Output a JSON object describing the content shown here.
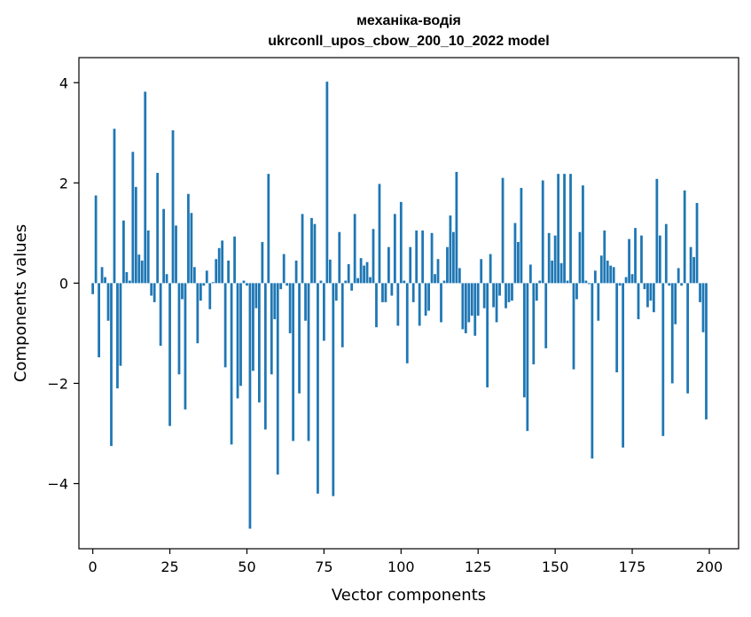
{
  "chart_data": {
    "type": "bar",
    "title": "механіка-водія",
    "subtitle": "ukrconll_upos_cbow_200_10_2022 model",
    "xlabel": "Vector components",
    "ylabel": "Components values",
    "xlim": [
      -4.5,
      209.5
    ],
    "ylim": [
      -5.3,
      4.5
    ],
    "xticks": [
      0,
      25,
      50,
      75,
      100,
      125,
      150,
      175,
      200
    ],
    "xtick_labels": [
      "0",
      "25",
      "50",
      "75",
      "100",
      "125",
      "150",
      "175",
      "200"
    ],
    "yticks": [
      -4,
      -2,
      0,
      2,
      4
    ],
    "ytick_labels": [
      "−4",
      "−2",
      "0",
      "2",
      "4"
    ],
    "grid": false,
    "bar_color": "#1f77b4",
    "x": [
      0,
      1,
      2,
      3,
      4,
      5,
      6,
      7,
      8,
      9,
      10,
      11,
      12,
      13,
      14,
      15,
      16,
      17,
      18,
      19,
      20,
      21,
      22,
      23,
      24,
      25,
      26,
      27,
      28,
      29,
      30,
      31,
      32,
      33,
      34,
      35,
      36,
      37,
      38,
      39,
      40,
      41,
      42,
      43,
      44,
      45,
      46,
      47,
      48,
      49,
      50,
      51,
      52,
      53,
      54,
      55,
      56,
      57,
      58,
      59,
      60,
      61,
      62,
      63,
      64,
      65,
      66,
      67,
      68,
      69,
      70,
      71,
      72,
      73,
      74,
      75,
      76,
      77,
      78,
      79,
      80,
      81,
      82,
      83,
      84,
      85,
      86,
      87,
      88,
      89,
      90,
      91,
      92,
      93,
      94,
      95,
      96,
      97,
      98,
      99,
      100,
      101,
      102,
      103,
      104,
      105,
      106,
      107,
      108,
      109,
      110,
      111,
      112,
      113,
      114,
      115,
      116,
      117,
      118,
      119,
      120,
      121,
      122,
      123,
      124,
      125,
      126,
      127,
      128,
      129,
      130,
      131,
      132,
      133,
      134,
      135,
      136,
      137,
      138,
      139,
      140,
      141,
      142,
      143,
      144,
      145,
      146,
      147,
      148,
      149,
      150,
      151,
      152,
      153,
      154,
      155,
      156,
      157,
      158,
      159,
      160,
      161,
      162,
      163,
      164,
      165,
      166,
      167,
      168,
      169,
      170,
      171,
      172,
      173,
      174,
      175,
      176,
      177,
      178,
      179,
      180,
      181,
      182,
      183,
      184,
      185,
      186,
      187,
      188,
      189,
      190,
      191,
      192,
      193,
      194,
      195,
      196,
      197,
      198,
      199
    ],
    "values": [
      -0.22,
      1.75,
      -1.48,
      0.32,
      0.12,
      -0.75,
      -3.25,
      3.08,
      -2.1,
      -1.65,
      1.25,
      0.22,
      0.05,
      2.62,
      1.92,
      0.57,
      0.45,
      3.82,
      1.05,
      -0.25,
      -0.38,
      2.2,
      -1.25,
      1.48,
      0.18,
      -2.85,
      3.05,
      1.15,
      -1.82,
      -0.32,
      -2.52,
      1.78,
      1.4,
      0.32,
      -1.2,
      -0.35,
      -0.05,
      0.25,
      -0.52,
      0.02,
      0.48,
      0.7,
      0.85,
      -1.68,
      0.45,
      -3.22,
      0.93,
      -2.3,
      -2.05,
      0.05,
      -0.05,
      -4.9,
      -1.75,
      -0.5,
      -2.38,
      0.82,
      -2.92,
      2.18,
      -1.82,
      -0.72,
      -3.82,
      -0.12,
      0.58,
      -0.05,
      -1.0,
      -3.15,
      0.45,
      -2.2,
      1.38,
      -0.75,
      -3.15,
      1.3,
      1.18,
      -4.2,
      0.05,
      -1.15,
      4.02,
      0.47,
      -4.25,
      -0.35,
      1.02,
      -1.28,
      0.05,
      0.38,
      -0.15,
      1.38,
      0.1,
      0.5,
      0.35,
      0.42,
      0.12,
      1.08,
      -0.88,
      1.98,
      -0.38,
      -0.38,
      0.72,
      -0.25,
      1.38,
      -0.85,
      1.62,
      0.05,
      -1.6,
      0.72,
      -0.38,
      1.05,
      -0.85,
      1.05,
      -0.65,
      -0.55,
      1.0,
      0.18,
      0.48,
      -0.78,
      0.05,
      0.72,
      1.35,
      1.02,
      2.22,
      0.3,
      -0.92,
      -1.0,
      -0.78,
      -0.65,
      -1.05,
      -0.65,
      0.48,
      -0.5,
      -2.08,
      0.58,
      -0.48,
      -0.78,
      -0.25,
      2.1,
      -0.5,
      -0.38,
      -0.35,
      1.2,
      0.82,
      1.9,
      -2.28,
      -2.95,
      0.37,
      -1.62,
      -0.35,
      0.05,
      2.05,
      -1.3,
      1.0,
      0.45,
      0.95,
      2.18,
      0.4,
      2.18,
      0.05,
      2.18,
      -1.72,
      -0.32,
      1.02,
      1.95,
      0.05,
      -0.02,
      -3.5,
      0.25,
      -0.75,
      0.55,
      1.05,
      0.45,
      0.35,
      0.32,
      -1.78,
      -0.05,
      -3.28,
      0.12,
      0.88,
      0.18,
      1.1,
      -0.72,
      0.95,
      -0.12,
      -0.48,
      -0.35,
      -0.58,
      2.08,
      0.95,
      -3.05,
      1.18,
      -0.05,
      -2.0,
      -0.82,
      0.3,
      -0.05,
      1.85,
      -2.2,
      0.72,
      0.52,
      1.6,
      -0.38,
      -0.98,
      -2.72
    ]
  }
}
